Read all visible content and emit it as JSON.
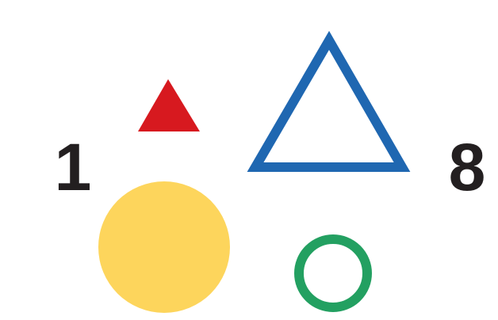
{
  "numbers": {
    "left": "1",
    "right": "8"
  },
  "shapes": [
    {
      "name": "small-filled-triangle",
      "shape": "triangle",
      "style": "filled",
      "color": "#d7191f"
    },
    {
      "name": "large-outline-triangle",
      "shape": "triangle",
      "style": "outline",
      "color": "#1f67b1"
    },
    {
      "name": "large-filled-circle",
      "shape": "circle",
      "style": "filled",
      "color": "#fdd55c"
    },
    {
      "name": "small-outline-circle",
      "shape": "circle",
      "style": "outline",
      "color": "#23a061"
    }
  ],
  "colors": {
    "text": "#231f20",
    "background": "#ffffff"
  }
}
